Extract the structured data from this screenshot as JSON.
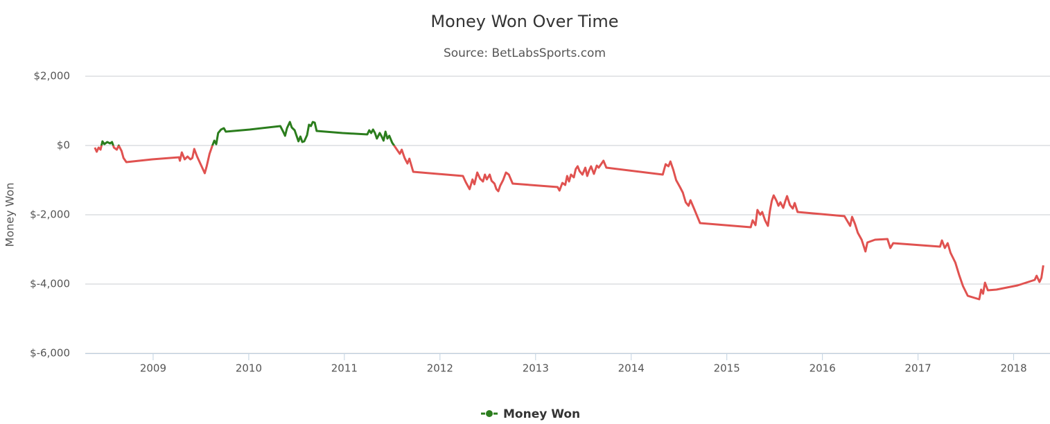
{
  "chart_data": {
    "type": "line",
    "title": "Money Won Over Time",
    "subtitle": "Source: BetLabsSports.com",
    "y_label": "Money Won",
    "x": [
      2008.39,
      2008.41,
      2008.43,
      2008.45,
      2008.47,
      2008.49,
      2008.52,
      2008.55,
      2008.57,
      2008.59,
      2008.62,
      2008.64,
      2008.67,
      2008.69,
      2008.72,
      2008.99,
      2009.27,
      2009.28,
      2009.3,
      2009.33,
      2009.36,
      2009.39,
      2009.41,
      2009.43,
      2009.46,
      2009.5,
      2009.54,
      2009.56,
      2009.59,
      2009.62,
      2009.64,
      2009.66,
      2009.68,
      2009.71,
      2009.74,
      2009.76,
      2010.01,
      2010.33,
      2010.36,
      2010.38,
      2010.4,
      2010.43,
      2010.45,
      2010.48,
      2010.5,
      2010.52,
      2010.54,
      2010.56,
      2010.58,
      2010.61,
      2010.63,
      2010.65,
      2010.67,
      2010.69,
      2010.71,
      2010.98,
      2011.24,
      2011.26,
      2011.28,
      2011.3,
      2011.32,
      2011.34,
      2011.37,
      2011.39,
      2011.41,
      2011.43,
      2011.45,
      2011.47,
      2011.5,
      2011.53,
      2011.56,
      2011.58,
      2011.6,
      2011.63,
      2011.66,
      2011.68,
      2011.72,
      2012.24,
      2012.27,
      2012.31,
      2012.34,
      2012.36,
      2012.39,
      2012.42,
      2012.45,
      2012.47,
      2012.49,
      2012.52,
      2012.54,
      2012.57,
      2012.59,
      2012.61,
      2012.63,
      2012.66,
      2012.69,
      2012.72,
      2012.76,
      2013.23,
      2013.25,
      2013.28,
      2013.31,
      2013.33,
      2013.35,
      2013.37,
      2013.4,
      2013.42,
      2013.44,
      2013.46,
      2013.49,
      2013.52,
      2013.54,
      2013.56,
      2013.58,
      2013.61,
      2013.64,
      2013.66,
      2013.69,
      2013.71,
      2013.74,
      2014.33,
      2014.36,
      2014.39,
      2014.41,
      2014.44,
      2014.47,
      2014.51,
      2014.54,
      2014.57,
      2014.6,
      2014.62,
      2014.66,
      2014.72,
      2015.25,
      2015.27,
      2015.3,
      2015.32,
      2015.35,
      2015.37,
      2015.4,
      2015.43,
      2015.45,
      2015.47,
      2015.49,
      2015.52,
      2015.54,
      2015.56,
      2015.59,
      2015.61,
      2015.63,
      2015.66,
      2015.69,
      2015.71,
      2015.74,
      2016.23,
      2016.29,
      2016.31,
      2016.34,
      2016.37,
      2016.41,
      2016.45,
      2016.47,
      2016.55,
      2016.68,
      2016.71,
      2016.74,
      2017.23,
      2017.25,
      2017.28,
      2017.31,
      2017.34,
      2017.39,
      2017.43,
      2017.47,
      2017.52,
      2017.64,
      2017.66,
      2017.68,
      2017.7,
      2017.73,
      2017.82,
      2018.04,
      2018.22,
      2018.24,
      2018.27,
      2018.29,
      2018.31
    ],
    "series": [
      {
        "name": "Money Won",
        "color": "#2b7d1d",
        "negative_color": "#e05250",
        "values": [
          -60,
          -180,
          -60,
          -120,
          120,
          40,
          100,
          60,
          100,
          -60,
          -120,
          0,
          -160,
          -360,
          -480,
          -400,
          -340,
          -440,
          -200,
          -400,
          -320,
          -400,
          -360,
          -100,
          -320,
          -560,
          -800,
          -600,
          -240,
          0,
          140,
          40,
          360,
          460,
          500,
          400,
          460,
          560,
          400,
          280,
          500,
          680,
          520,
          440,
          280,
          120,
          260,
          100,
          120,
          300,
          600,
          560,
          680,
          660,
          420,
          360,
          320,
          440,
          360,
          460,
          360,
          200,
          360,
          260,
          140,
          400,
          200,
          280,
          80,
          -40,
          -160,
          -240,
          -120,
          -360,
          -520,
          -380,
          -760,
          -880,
          -1060,
          -1260,
          -980,
          -1120,
          -780,
          -960,
          -1040,
          -840,
          -980,
          -840,
          -1020,
          -1100,
          -1260,
          -1320,
          -1160,
          -1000,
          -780,
          -840,
          -1100,
          -1200,
          -1300,
          -1080,
          -1140,
          -880,
          -1040,
          -840,
          -920,
          -680,
          -600,
          -740,
          -840,
          -640,
          -880,
          -720,
          -600,
          -820,
          -580,
          -640,
          -520,
          -440,
          -640,
          -840,
          -540,
          -600,
          -460,
          -700,
          -1000,
          -1200,
          -1360,
          -1640,
          -1740,
          -1580,
          -1840,
          -2240,
          -2360,
          -2160,
          -2300,
          -1860,
          -2000,
          -1920,
          -2160,
          -2320,
          -1900,
          -1600,
          -1440,
          -1600,
          -1740,
          -1640,
          -1800,
          -1620,
          -1460,
          -1720,
          -1820,
          -1660,
          -1920,
          -2040,
          -2320,
          -2060,
          -2260,
          -2520,
          -2720,
          -3060,
          -2800,
          -2720,
          -2700,
          -2960,
          -2820,
          -2920,
          -2740,
          -2960,
          -2820,
          -3100,
          -3380,
          -3740,
          -4060,
          -4340,
          -4440,
          -4160,
          -4280,
          -3960,
          -4180,
          -4160,
          -4040,
          -3880,
          -3760,
          -3940,
          -3820,
          -3460
        ]
      }
    ],
    "xlim": [
      2008.29,
      2018.38
    ],
    "xticks": [
      2009,
      2010,
      2011,
      2012,
      2013,
      2014,
      2015,
      2016,
      2017,
      2018
    ],
    "ylim": [
      -6000,
      2000
    ],
    "yticks": [
      {
        "value": -6000,
        "label": "$-6,000"
      },
      {
        "value": -4000,
        "label": "$-4,000"
      },
      {
        "value": -2000,
        "label": "$-2,000"
      },
      {
        "value": 0,
        "label": "$0"
      },
      {
        "value": 2000,
        "label": "$2,000"
      }
    ],
    "grid": true,
    "legend": "bottom"
  }
}
